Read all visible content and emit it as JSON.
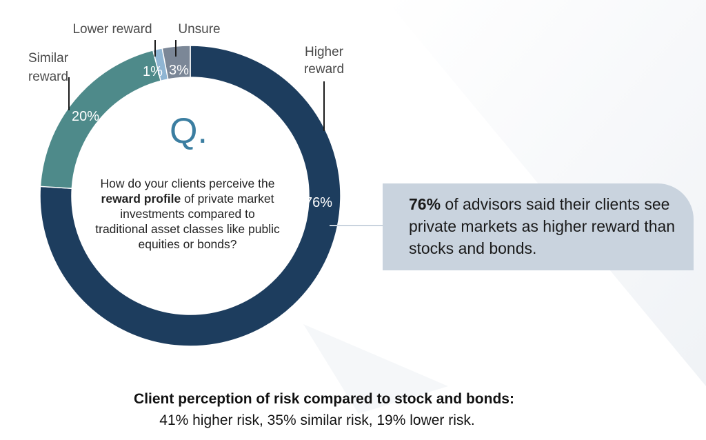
{
  "colors": {
    "higher": "#1d3d5e",
    "similar": "#4e8a8a",
    "lower": "#8fb5d3",
    "unsure": "#7b8797",
    "callout_bg": "#c9d3de",
    "q_mark": "#3b7ea1"
  },
  "chart_data": {
    "type": "pie",
    "donut": true,
    "categories": [
      "Higher reward",
      "Similar reward",
      "Lower reward",
      "Unsure"
    ],
    "values": [
      76,
      20,
      1,
      3
    ],
    "value_labels": [
      "76%",
      "20%",
      "1%",
      "3%"
    ],
    "label_lines": {
      "higher": [
        "Higher",
        "reward"
      ],
      "similar": [
        "Similar",
        "reward"
      ],
      "lower": [
        "Lower reward"
      ],
      "unsure": [
        "Unsure"
      ]
    }
  },
  "center": {
    "q_mark": "Q.",
    "question_pre": "How do your clients perceive the ",
    "question_bold": "reward profile",
    "question_post": " of private market investments compared to traditional asset classes like public equities or bonds?"
  },
  "callout": {
    "bold": "76%",
    "text": " of advisors said their clients see private markets as higher reward than stocks and bonds."
  },
  "footer": {
    "title": "Client perception of risk compared to stock and bonds:",
    "text": "41% higher risk, 35% similar risk, 19% lower risk."
  }
}
